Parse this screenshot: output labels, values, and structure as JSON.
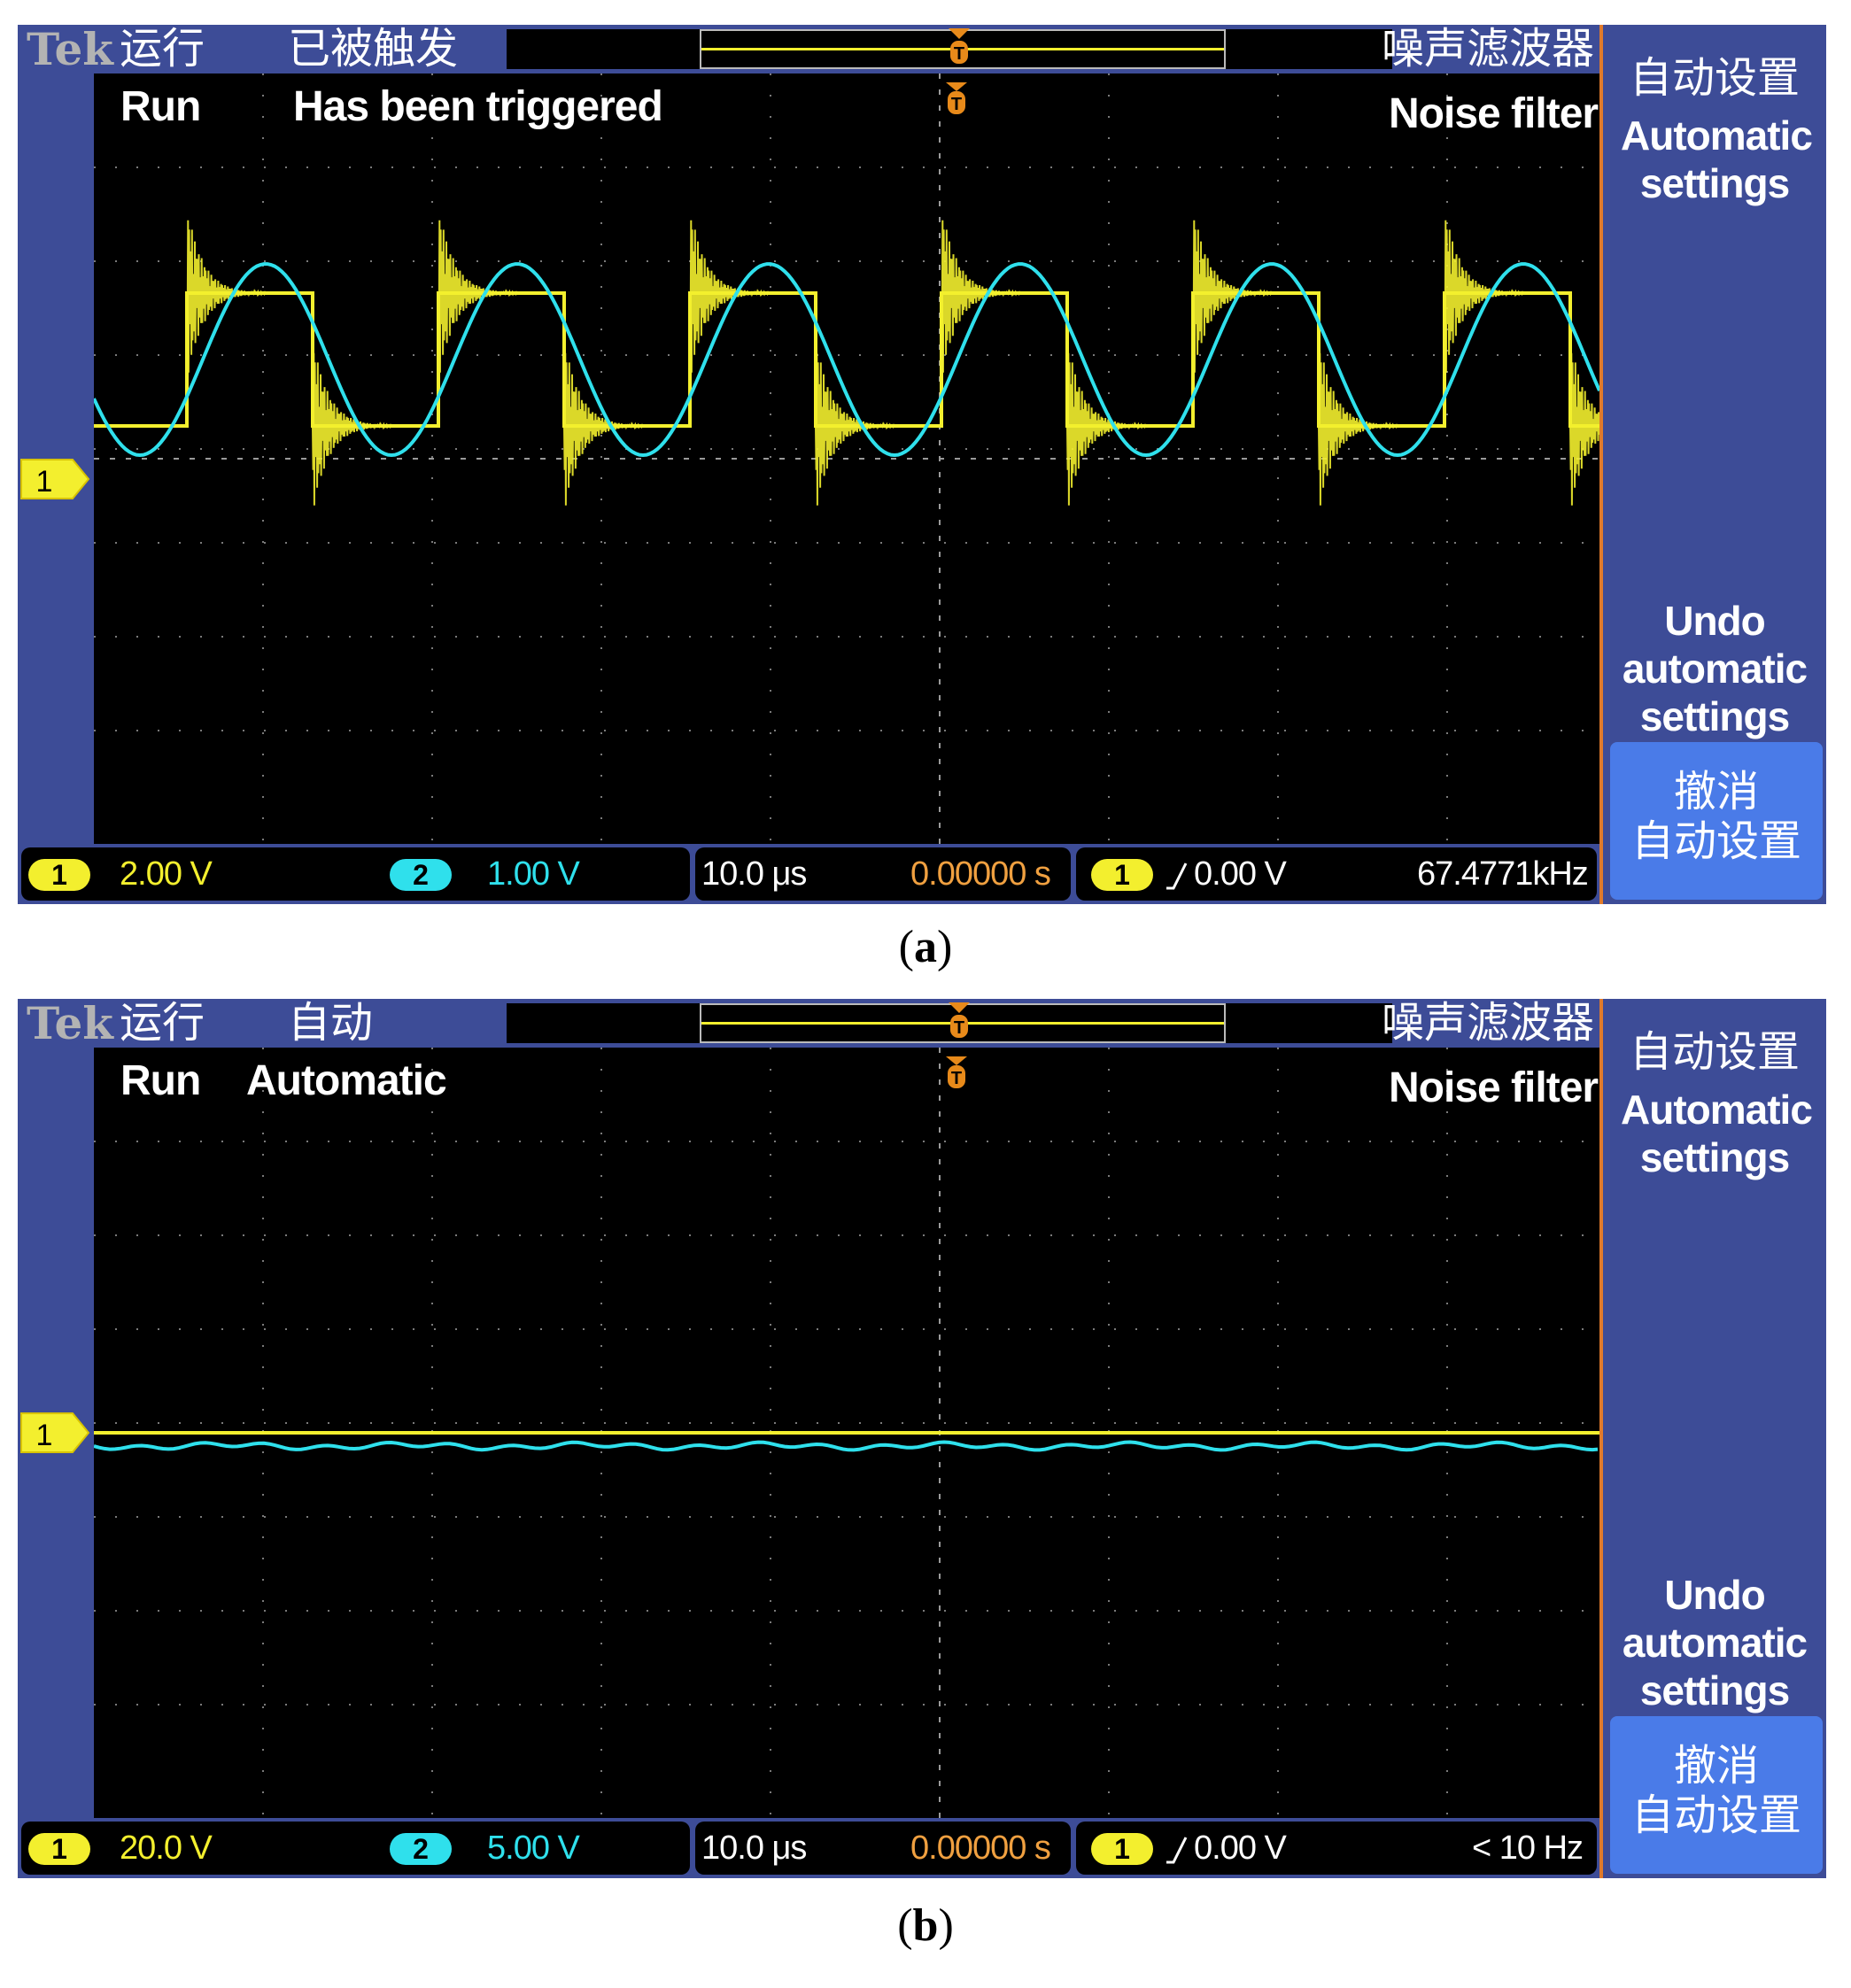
{
  "panels": [
    {
      "caption_letter": "a",
      "brand": "Tek",
      "status_cn": "运行",
      "trigger_state_cn": "已被触发",
      "noise_filter_cn": "噪声滤波器",
      "status_en": "Run",
      "trigger_state_en": "Has been triggered",
      "noise_filter_en": "Noise filter",
      "channel_marker": "1",
      "ch1_label": "1",
      "ch1_scale": "2.00 V",
      "ch2_label": "2",
      "ch2_scale": "1.00 V",
      "timebase": "10.0 μs",
      "time_offset": "0.00000 s",
      "trigger_channel": "1",
      "trigger_level": "0.00 V",
      "frequency": "67.4771kHz",
      "menu": {
        "auto_cn": "自动设置",
        "auto_en": "Automatic settings",
        "undo_en": "Undo automatic settings",
        "undo_cn_line1": "撤消",
        "undo_cn_line2": "自动设置"
      }
    },
    {
      "caption_letter": "b",
      "brand": "Tek",
      "status_cn": "运行",
      "trigger_state_cn": "自动",
      "noise_filter_cn": "噪声滤波器",
      "status_en": "Run",
      "trigger_state_en": "Automatic",
      "noise_filter_en": "Noise filter",
      "channel_marker": "1",
      "ch1_label": "1",
      "ch1_scale": "20.0 V",
      "ch2_label": "2",
      "ch2_scale": "5.00 V",
      "timebase": "10.0 μs",
      "time_offset": "0.00000 s",
      "trigger_channel": "1",
      "trigger_level": "0.00 V",
      "frequency": "< 10 Hz",
      "menu": {
        "auto_cn": "自动设置",
        "auto_en": "Automatic settings",
        "undo_en": "Undo automatic settings",
        "undo_cn_line1": "撤消",
        "undo_cn_line2": "自动设置"
      }
    }
  ],
  "colors": {
    "ch1": "#f3ef2e",
    "ch2": "#2fe0ec",
    "frame": "#3d4c97",
    "menu_border": "#e07a2b",
    "time_offset": "#f0a040",
    "trigger_marker": "#e88a1a",
    "undo_button": "#4a7be8"
  },
  "icons": {
    "trigger_position": "orange-T-marker-icon",
    "channel_marker": "yellow-arrow-tag-icon",
    "rising_edge": "rising-edge-icon"
  }
}
